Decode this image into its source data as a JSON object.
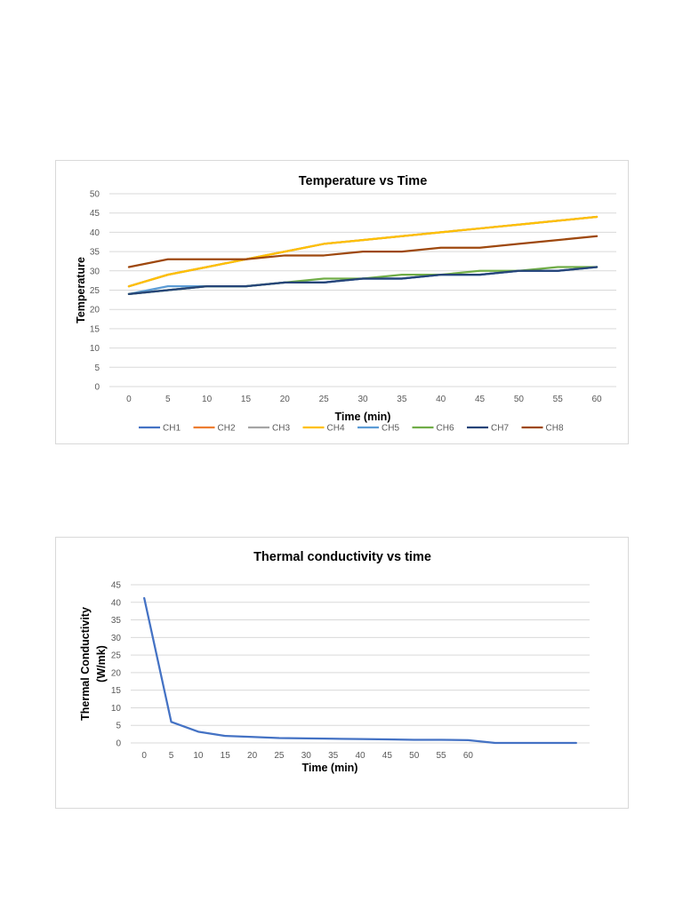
{
  "chart_data": [
    {
      "type": "line",
      "title": "Temperature vs Time",
      "xlabel": "Time (min)",
      "ylabel": "Temperature",
      "ylim": [
        0,
        50
      ],
      "yticks": [
        0,
        5,
        10,
        15,
        20,
        25,
        30,
        35,
        40,
        45,
        50
      ],
      "categories": [
        "0",
        "5",
        "10",
        "15",
        "20",
        "25",
        "30",
        "35",
        "40",
        "45",
        "50",
        "55",
        "60"
      ],
      "grid": true,
      "legend": "bottom",
      "series": [
        {
          "name": "CH1",
          "color": "#4472C4",
          "values": [
            24,
            25,
            26,
            26,
            27,
            27,
            28,
            28,
            29,
            29,
            30,
            30,
            31
          ]
        },
        {
          "name": "CH2",
          "color": "#ED7D31",
          "values": [
            26,
            29,
            31,
            33,
            35,
            37,
            38,
            39,
            40,
            41,
            42,
            43,
            44
          ]
        },
        {
          "name": "CH3",
          "color": "#A5A5A5",
          "values": [
            26,
            29,
            31,
            33,
            35,
            37,
            38,
            39,
            40,
            41,
            42,
            43,
            44
          ]
        },
        {
          "name": "CH4",
          "color": "#FFC000",
          "values": [
            26,
            29,
            31,
            33,
            35,
            37,
            38,
            39,
            40,
            41,
            42,
            43,
            44
          ]
        },
        {
          "name": "CH5",
          "color": "#5B9BD5",
          "values": [
            24,
            26,
            26,
            26,
            27,
            27,
            28,
            28,
            29,
            29,
            30,
            30,
            31
          ]
        },
        {
          "name": "CH6",
          "color": "#70AD47",
          "values": [
            24,
            25,
            26,
            26,
            27,
            28,
            28,
            29,
            29,
            30,
            30,
            31,
            31
          ]
        },
        {
          "name": "CH7",
          "color": "#264478",
          "values": [
            24,
            25,
            26,
            26,
            27,
            27,
            28,
            28,
            29,
            29,
            30,
            30,
            31
          ]
        },
        {
          "name": "CH8",
          "color": "#9E480E",
          "values": [
            31,
            33,
            33,
            33,
            34,
            34,
            35,
            35,
            36,
            36,
            37,
            38,
            39
          ]
        }
      ]
    },
    {
      "type": "line",
      "title": "Thermal conductivity vs time",
      "xlabel": "Time (min)",
      "ylabel": "Thermal Conductivity (W/mk)",
      "ylabel_lines": [
        "Thermal Conductivity",
        "(W/mk)"
      ],
      "ylim": [
        0,
        45
      ],
      "yticks": [
        0,
        5,
        10,
        15,
        20,
        25,
        30,
        35,
        40,
        45
      ],
      "categories": [
        "0",
        "5",
        "10",
        "15",
        "20",
        "25",
        "30",
        "35",
        "40",
        "45",
        "50",
        "55",
        "60",
        "",
        "",
        " ",
        ""
      ],
      "grid": true,
      "series": [
        {
          "color": "#4472C4",
          "values": [
            41.2,
            6.0,
            3.2,
            2.0,
            1.7,
            1.4,
            1.3,
            1.2,
            1.1,
            1.0,
            0.9,
            0.9,
            0.8,
            0,
            0,
            0,
            0
          ]
        }
      ]
    }
  ]
}
